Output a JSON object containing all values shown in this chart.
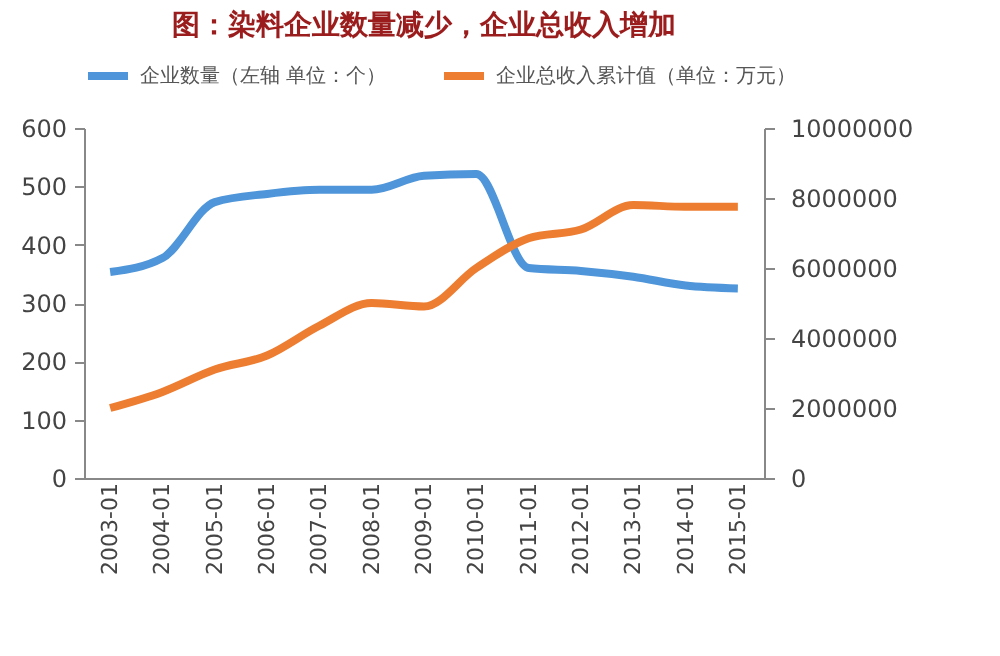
{
  "chart_data": {
    "type": "line",
    "title": "图：染料企业数量减少，企业总收入增加",
    "categories": [
      "2003-01",
      "2004-01",
      "2005-01",
      "2006-01",
      "2007-01",
      "2008-01",
      "2009-01",
      "2010-01",
      "2011-01",
      "2012-01",
      "2013-01",
      "2014-01",
      "2015-01"
    ],
    "series": [
      {
        "name": "企业数量（左轴 单位：个）",
        "color": "#4e95d9",
        "values": [
          353,
          377,
          473,
          487,
          494,
          494,
          518,
          521,
          360,
          355,
          345,
          330,
          325
        ]
      },
      {
        "name": "企业总收入累计值（单位：万元）",
        "color": "#ed7d31",
        "axis": "y2",
        "values": [
          2000000,
          2460000,
          3100000,
          3500000,
          4350000,
          5000000,
          4900000,
          6000000,
          6850000,
          7100000,
          7800000,
          7750000,
          7750000
        ]
      }
    ],
    "ylim": [
      0,
      600
    ],
    "yticks": [
      0,
      100,
      200,
      300,
      400,
      500,
      600
    ],
    "y2lim": [
      0,
      10000000
    ],
    "y2ticks": [
      0,
      2000000,
      4000000,
      6000000,
      8000000,
      10000000
    ],
    "legend": "top",
    "grid": false
  }
}
